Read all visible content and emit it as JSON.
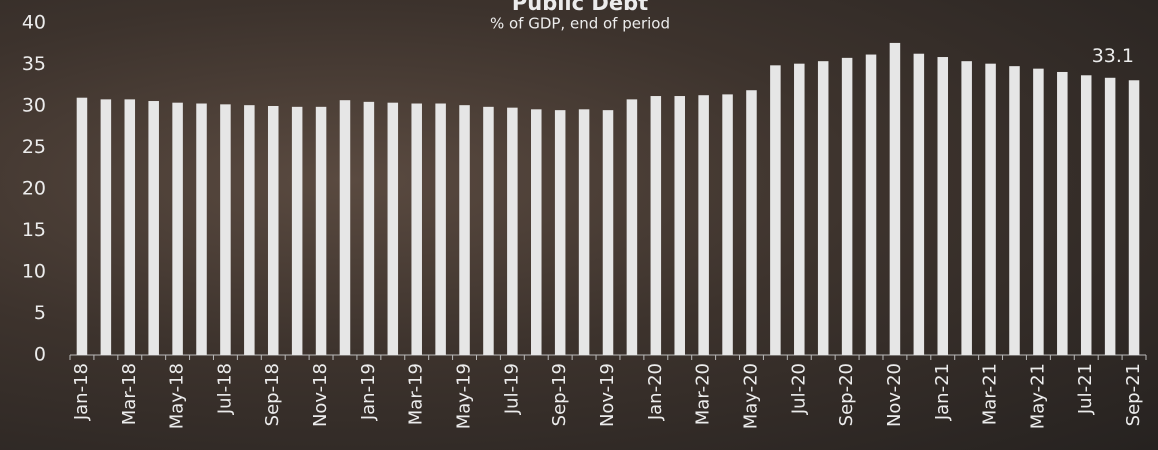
{
  "chart_data": {
    "type": "bar",
    "title": "Public Debt",
    "subtitle": "% of GDP, end of period",
    "categories": [
      "Jan-18",
      null,
      "Mar-18",
      null,
      "May-18",
      null,
      "Jul-18",
      null,
      "Sep-18",
      null,
      "Nov-18",
      null,
      "Jan-19",
      null,
      "Mar-19",
      null,
      "May-19",
      null,
      "Jul-19",
      null,
      "Sep-19",
      null,
      "Nov-19",
      null,
      "Jan-20",
      null,
      "Mar-20",
      null,
      "May-20",
      null,
      "Jul-20",
      null,
      "Sep-20",
      null,
      "Nov-20",
      null,
      "Jan-21",
      null,
      "Mar-21",
      null,
      "May-21",
      null,
      "Jul-21",
      null,
      "Sep-21"
    ],
    "values": [
      31.0,
      30.8,
      30.8,
      30.6,
      30.4,
      30.3,
      30.2,
      30.1,
      30.0,
      29.9,
      29.9,
      30.7,
      30.5,
      30.4,
      30.3,
      30.3,
      30.1,
      29.9,
      29.8,
      29.6,
      29.5,
      29.6,
      29.5,
      30.8,
      31.2,
      31.2,
      31.3,
      31.4,
      31.9,
      34.9,
      35.1,
      35.4,
      35.8,
      36.2,
      37.6,
      36.3,
      35.9,
      35.4,
      35.1,
      34.8,
      34.5,
      34.1,
      33.7,
      33.4,
      33.1
    ],
    "color": "#e6e6e6",
    "label_last": true,
    "ylim": [
      0,
      40
    ],
    "yticks": [
      0,
      5,
      10,
      15,
      20,
      25,
      30,
      35,
      40
    ],
    "grid": false
  }
}
